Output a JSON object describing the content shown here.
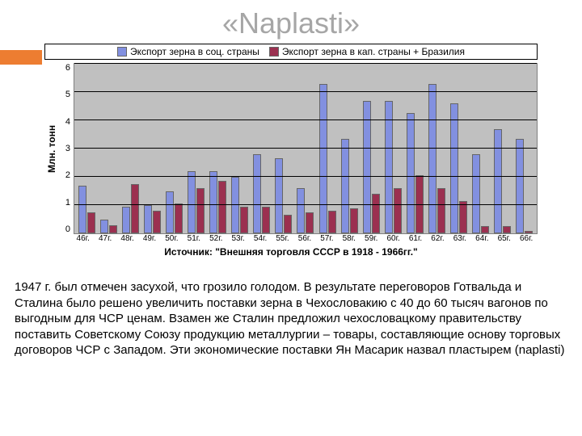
{
  "title": "«Naplasti»",
  "title_color": "#a6a6a6",
  "orange_color": "#ed7d31",
  "chart": {
    "type": "bar",
    "legend": {
      "series1": {
        "label": "Экспорт зерна в соц. страны",
        "color": "#8290e0"
      },
      "series2": {
        "label": "Экспорт зерна в кап. страны + Бразилия",
        "color": "#9b3050"
      }
    },
    "ylabel": "Млн. тонн",
    "ylim": [
      0,
      6
    ],
    "ytick_step": 1,
    "yticks": [
      "6",
      "5",
      "4",
      "3",
      "2",
      "1",
      "0"
    ],
    "plot_bg": "#c0c0c0",
    "grid_color": "#000000",
    "categories": [
      "46г.",
      "47г.",
      "48г.",
      "49г.",
      "50г.",
      "51г.",
      "52г.",
      "53г.",
      "54г.",
      "55г.",
      "56г.",
      "57г.",
      "58г.",
      "59г.",
      "60г.",
      "61г.",
      "62г.",
      "63г.",
      "64г.",
      "65г.",
      "66г."
    ],
    "series1_values": [
      1.7,
      0.5,
      0.95,
      1.0,
      1.5,
      2.2,
      2.2,
      2.0,
      2.8,
      2.65,
      1.6,
      5.3,
      3.35,
      4.7,
      4.7,
      4.25,
      5.3,
      4.6,
      2.8,
      3.7,
      3.35
    ],
    "series2_values": [
      0.75,
      0.3,
      1.75,
      0.8,
      1.05,
      1.6,
      1.85,
      0.95,
      0.95,
      0.65,
      0.75,
      0.8,
      0.9,
      1.4,
      1.6,
      2.05,
      1.6,
      1.15,
      0.25,
      0.25,
      0.1
    ],
    "source": "Источник: \"Внешняя торговля СССР в 1918 - 1966гг.\""
  },
  "body_text": " 1947 г. был отмечен засухой, что грозило голодом. В результате переговоров Готвальда и Сталина было решено увеличить поставки зерна в Чехословакию с 40 до 60 тысяч вагонов по выгодным для ЧСР ценам. Взамен же Сталин предложил чехословацкому правительству поставить Советскому Союзу продукцию металлургии – товары, составляющие основу торговых договоров ЧСР с Западом. Эти экономические поставки Ян Масарик назвал пластырем (naplasti)"
}
